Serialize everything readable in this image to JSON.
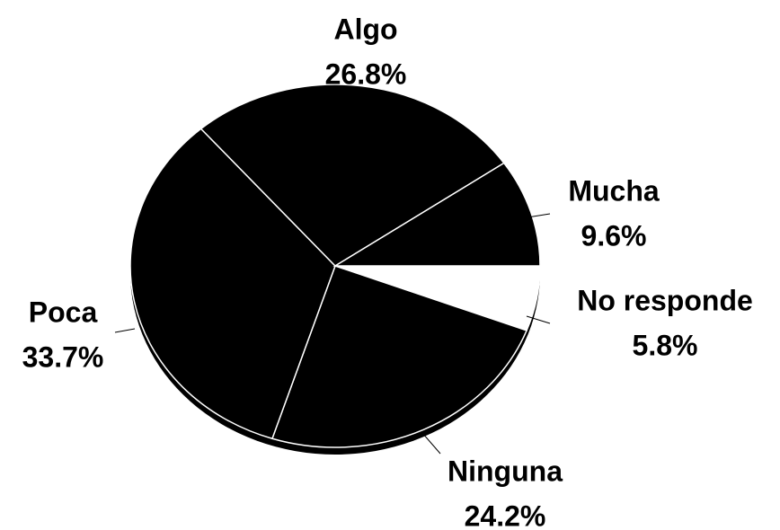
{
  "chart_data": {
    "type": "pie",
    "categories": [
      "No responde",
      "Ninguna",
      "Poca",
      "Algo",
      "Mucha"
    ],
    "values": [
      5.8,
      24.2,
      33.7,
      26.8,
      9.6
    ],
    "value_labels": [
      "5.8%",
      "24.2%",
      "33.7%",
      "26.8%",
      "9.6%"
    ],
    "colors": [
      "#ffffff",
      "#000000",
      "#000000",
      "#000000",
      "#000000"
    ]
  }
}
